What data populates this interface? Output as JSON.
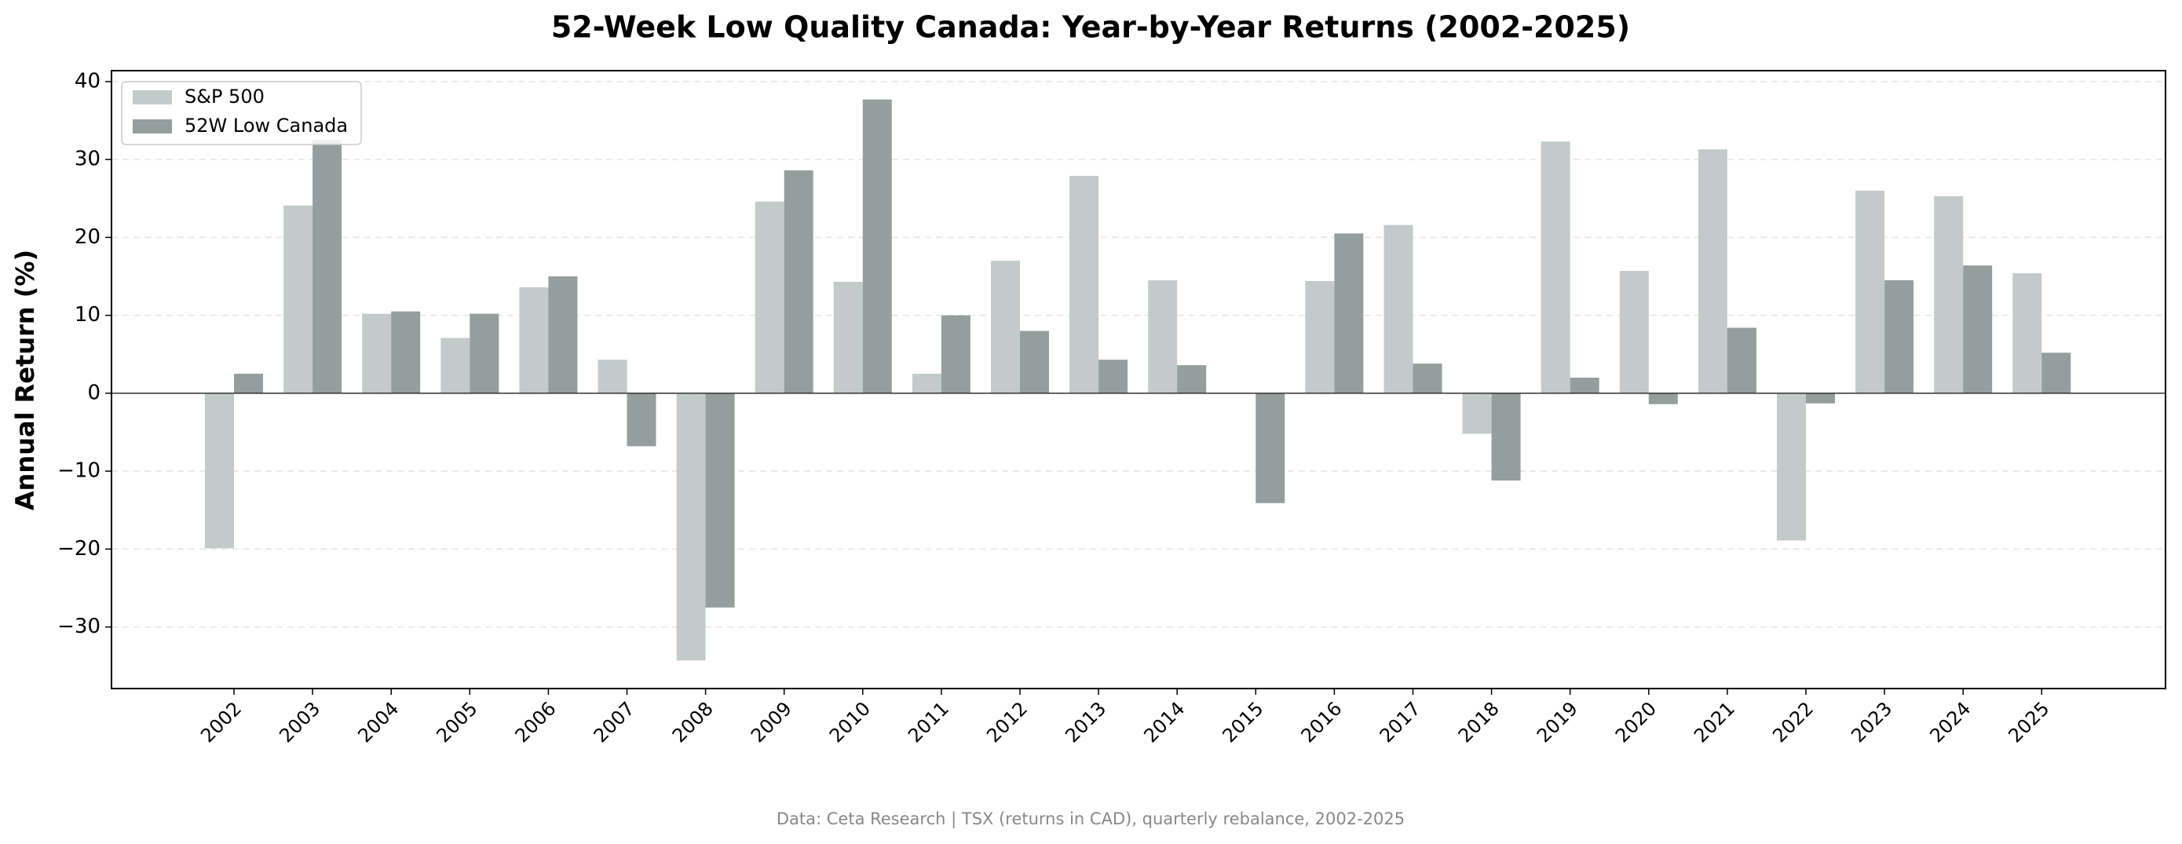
{
  "chart_data": {
    "type": "bar",
    "title": "52-Week Low Quality Canada: Year-by-Year Returns (2002-2025)",
    "ylabel": "Annual Return (%)",
    "footnote": "Data: Ceta Research | TSX (returns in CAD), quarterly rebalance, 2002-2025",
    "categories": [
      "2002",
      "2003",
      "2004",
      "2005",
      "2006",
      "2007",
      "2008",
      "2009",
      "2010",
      "2011",
      "2012",
      "2013",
      "2014",
      "2015",
      "2016",
      "2017",
      "2018",
      "2019",
      "2020",
      "2021",
      "2022",
      "2023",
      "2024",
      "2025"
    ],
    "series": [
      {
        "name": "S&P 500",
        "color": "#c2cbca",
        "values": [
          -19.9,
          24.1,
          10.2,
          7.1,
          13.6,
          4.3,
          -34.3,
          24.6,
          14.3,
          2.5,
          17.0,
          27.9,
          14.5,
          0,
          14.4,
          21.6,
          -5.2,
          32.3,
          15.7,
          31.3,
          -18.9,
          26.0,
          25.3,
          15.4
        ]
      },
      {
        "name": "52W Low Canada",
        "color": "#949e9c",
        "values": [
          2.5,
          32.5,
          10.5,
          10.2,
          15.0,
          -6.8,
          -27.5,
          28.6,
          37.7,
          10.0,
          8.0,
          4.3,
          3.6,
          -14.1,
          20.5,
          3.8,
          -11.2,
          2.0,
          -1.4,
          8.4,
          -1.3,
          14.5,
          16.4,
          5.2
        ]
      }
    ],
    "ylim": [
      -37.9,
      41.4
    ],
    "yticks": [
      {
        "value": -30,
        "label": "−30"
      },
      {
        "value": -20,
        "label": "−20"
      },
      {
        "value": -10,
        "label": "−10"
      },
      0,
      10,
      20,
      30,
      40
    ],
    "grid": true,
    "legend": "upper left"
  }
}
